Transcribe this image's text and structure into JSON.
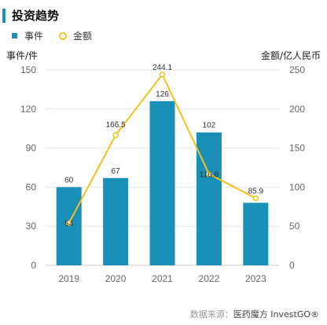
{
  "header": {
    "title": "投资趋势"
  },
  "source": {
    "prefix": "数据来源：",
    "name": "医药魔方 InvestGO®"
  },
  "colors": {
    "bar": "#1a8fb8",
    "line": "#f2c21b",
    "grid": "#e6e6e6"
  },
  "chart_data": {
    "type": "bar",
    "categories": [
      "2019",
      "2020",
      "2021",
      "2022",
      "2023"
    ],
    "series": [
      {
        "name": "事件",
        "type": "bar",
        "axis": "left",
        "values": [
          60,
          67,
          126,
          102,
          48
        ],
        "labels": [
          "60",
          "67",
          "126",
          "102",
          ""
        ]
      },
      {
        "name": "金额",
        "type": "line",
        "axis": "right",
        "values": [
          54,
          166.5,
          244.1,
          116.8,
          85.9
        ],
        "labels": [
          "54",
          "166.5",
          "244.1",
          "116.8",
          "85.9"
        ]
      }
    ],
    "y_left": {
      "label": "事件/件",
      "ticks": [
        "0",
        "30",
        "60",
        "90",
        "120",
        "150"
      ],
      "lim": [
        0,
        150
      ]
    },
    "y_right": {
      "label": "金额/亿人民币",
      "ticks": [
        "0",
        "50",
        "100",
        "150",
        "200",
        "250"
      ],
      "lim": [
        0,
        250
      ]
    },
    "legend": {
      "position": "top-left"
    },
    "grid": true
  }
}
